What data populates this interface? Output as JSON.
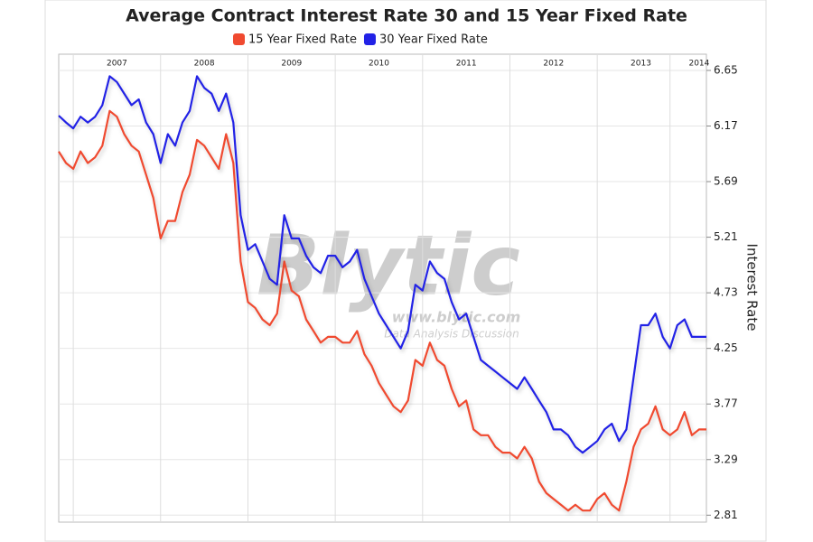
{
  "chart_data": {
    "type": "line",
    "title": "Average Contract Interest Rate 30 and 15 Year Fixed Rate",
    "y_label": "Interest Rate",
    "watermark": {
      "logo": "Blytic",
      "url": "www.blytic.com",
      "tagline": "Data Analysis Discussion"
    },
    "categories": [
      null,
      null,
      null,
      null,
      null,
      null,
      null,
      null,
      "2007",
      null,
      null,
      null,
      null,
      null,
      null,
      null,
      null,
      null,
      null,
      null,
      "2008",
      null,
      null,
      null,
      null,
      null,
      null,
      null,
      null,
      null,
      null,
      null,
      "2009",
      null,
      null,
      null,
      null,
      null,
      null,
      null,
      null,
      null,
      null,
      null,
      "2010",
      null,
      null,
      null,
      null,
      null,
      null,
      null,
      null,
      null,
      null,
      null,
      "2011",
      null,
      null,
      null,
      null,
      null,
      null,
      null,
      null,
      null,
      null,
      null,
      "2012",
      null,
      null,
      null,
      null,
      null,
      null,
      null,
      null,
      null,
      null,
      null,
      "2013",
      null,
      null,
      null,
      null,
      null,
      null,
      null,
      "2014",
      null
    ],
    "series": [
      {
        "name": "15 Year Fixed Rate",
        "color": "#f04a30",
        "values": [
          5.95,
          5.85,
          5.8,
          5.95,
          5.85,
          5.9,
          6.0,
          6.3,
          6.25,
          6.1,
          6.0,
          5.95,
          5.75,
          5.55,
          5.2,
          5.35,
          5.35,
          5.6,
          5.75,
          6.05,
          6.0,
          5.9,
          5.8,
          6.1,
          5.85,
          5.0,
          4.65,
          4.6,
          4.5,
          4.45,
          4.55,
          5.0,
          4.75,
          4.7,
          4.5,
          4.4,
          4.3,
          4.35,
          4.35,
          4.3,
          4.3,
          4.4,
          4.2,
          4.1,
          3.95,
          3.85,
          3.75,
          3.7,
          3.8,
          4.15,
          4.1,
          4.3,
          4.15,
          4.1,
          3.9,
          3.75,
          3.8,
          3.55,
          3.5,
          3.5,
          3.4,
          3.35,
          3.35,
          3.3,
          3.4,
          3.3,
          3.1,
          3.0,
          2.95,
          2.9,
          2.85,
          2.9,
          2.85,
          2.85,
          2.95,
          3.0,
          2.9,
          2.85,
          3.1,
          3.4,
          3.55,
          3.6,
          3.75,
          3.55,
          3.5,
          3.55,
          3.7,
          3.5,
          3.55,
          3.55
        ]
      },
      {
        "name": "30 Year Fixed Rate",
        "color": "#2222e6",
        "values": [
          6.26,
          6.2,
          6.15,
          6.25,
          6.2,
          6.25,
          6.35,
          6.6,
          6.55,
          6.45,
          6.35,
          6.4,
          6.2,
          6.1,
          5.85,
          6.1,
          6.0,
          6.2,
          6.3,
          6.6,
          6.5,
          6.45,
          6.3,
          6.45,
          6.2,
          5.4,
          5.1,
          5.15,
          5.0,
          4.85,
          4.8,
          5.4,
          5.2,
          5.2,
          5.05,
          4.95,
          4.9,
          5.05,
          5.05,
          4.95,
          5.0,
          5.1,
          4.85,
          4.7,
          4.55,
          4.45,
          4.35,
          4.25,
          4.4,
          4.8,
          4.75,
          5.0,
          4.9,
          4.85,
          4.65,
          4.5,
          4.55,
          4.35,
          4.15,
          4.1,
          4.05,
          4.0,
          3.95,
          3.9,
          4.0,
          3.9,
          3.8,
          3.7,
          3.55,
          3.55,
          3.5,
          3.4,
          3.35,
          3.4,
          3.45,
          3.55,
          3.6,
          3.45,
          3.55,
          4.0,
          4.45,
          4.45,
          4.55,
          4.35,
          4.25,
          4.45,
          4.5,
          4.35,
          4.35,
          4.35
        ]
      }
    ],
    "ylim": [
      2.75,
      6.79
    ],
    "yticks": [
      2.81,
      3.29,
      3.77,
      4.25,
      4.73,
      5.21,
      5.69,
      6.17,
      6.65
    ],
    "grid": true
  }
}
